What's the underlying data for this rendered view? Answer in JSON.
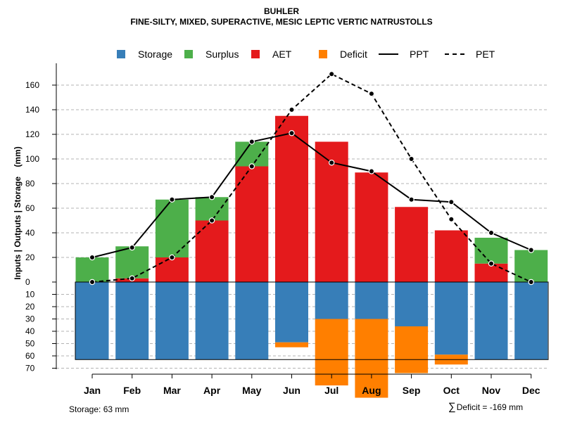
{
  "titles": {
    "line1": "BUHLER",
    "line2": "FINE-SILTY, MIXED, SUPERACTIVE, MESIC LEPTIC VERTIC NATRUSTOLLS"
  },
  "legend": [
    {
      "label": "Storage",
      "kind": "box",
      "color": "#377EB8"
    },
    {
      "label": "Surplus",
      "kind": "box",
      "color": "#4DAF4A"
    },
    {
      "label": "AET",
      "kind": "box",
      "color": "#E41A1C"
    },
    {
      "label": "Deficit",
      "kind": "box",
      "color": "#FF7F00"
    },
    {
      "label": "PPT",
      "kind": "line"
    },
    {
      "label": "PET",
      "kind": "dashed"
    }
  ],
  "colors": {
    "storage": "#377EB8",
    "surplus": "#4DAF4A",
    "aet": "#E41A1C",
    "deficit": "#FF7F00"
  },
  "footer": {
    "storage_note": "Storage: 63 mm",
    "deficit_sigma": "∑",
    "deficit_note": "Deficit = -169 mm"
  },
  "chart_data": {
    "type": "bar",
    "ylabel": "Inputs | Outputs | Storage    (mm)",
    "categories": [
      "Jan",
      "Feb",
      "Mar",
      "Apr",
      "May",
      "Jun",
      "Jul",
      "Aug",
      "Sep",
      "Oct",
      "Nov",
      "Dec"
    ],
    "highlight_category": "Aug",
    "upper_axis": {
      "ylim": [
        0,
        170
      ],
      "ticks": [
        0,
        20,
        40,
        60,
        80,
        100,
        120,
        140,
        160
      ]
    },
    "lower_axis": {
      "ylim": [
        0,
        70
      ],
      "ticks": [
        0,
        10,
        20,
        30,
        40,
        50,
        60,
        70
      ],
      "direction": "down"
    },
    "storage_capacity": 63,
    "series": [
      {
        "name": "AET",
        "kind": "bar",
        "values": [
          0,
          3,
          20,
          50,
          94,
          135,
          114,
          89,
          61,
          42,
          15,
          0
        ]
      },
      {
        "name": "Surplus",
        "kind": "bar-stacked",
        "values": [
          20,
          26,
          47,
          19,
          20,
          0,
          0,
          0,
          0,
          0,
          21,
          26
        ]
      },
      {
        "name": "Storage",
        "kind": "bar-below",
        "values": [
          63,
          63,
          63,
          63,
          63,
          49,
          30,
          30,
          36,
          59,
          63,
          63
        ]
      },
      {
        "name": "Deficit",
        "kind": "bar-below-stacked",
        "values": [
          0,
          0,
          0,
          0,
          0,
          4,
          54,
          64,
          38,
          8,
          0,
          0
        ]
      },
      {
        "name": "PPT",
        "kind": "line",
        "values": [
          20,
          28,
          67,
          69,
          114,
          121,
          97,
          90,
          67,
          65,
          40,
          26
        ]
      },
      {
        "name": "PET",
        "kind": "dashed-line",
        "values": [
          0,
          3,
          20,
          50,
          94,
          140,
          169,
          153,
          100,
          51,
          15,
          0
        ]
      }
    ]
  }
}
